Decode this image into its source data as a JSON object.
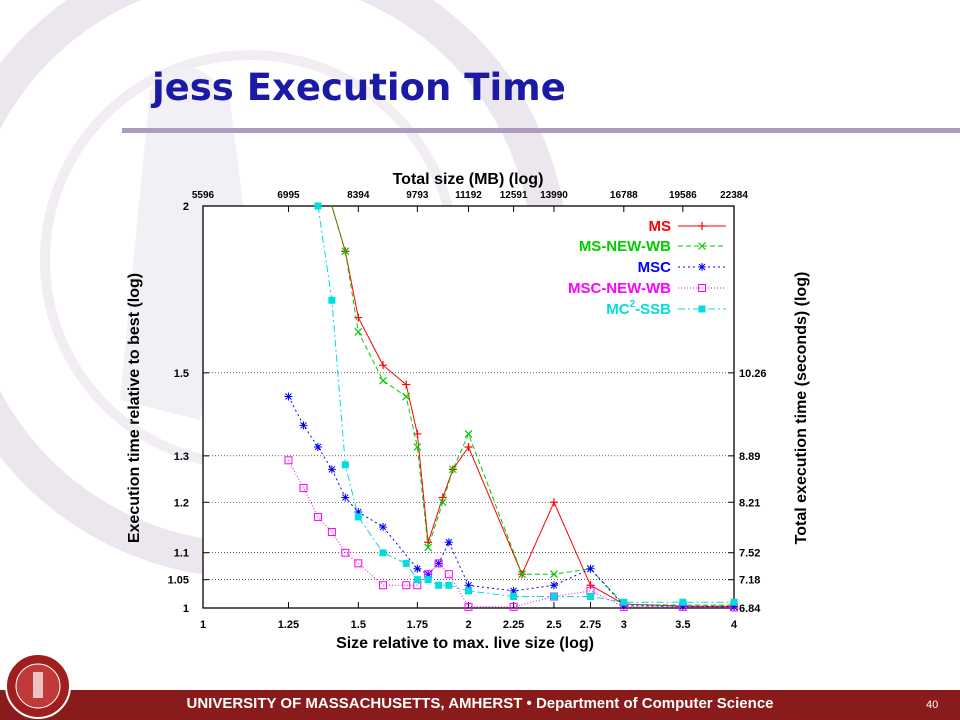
{
  "slide": {
    "title": "jess Execution Time",
    "page_number": "40",
    "footer_prefix": "UNIVERSITY OF MASSACHUSETTS, AMHERST",
    "footer_sep": " • ",
    "footer_dept": "Department of Computer Science",
    "colors": {
      "title": "#1a1aa6",
      "footer": "#8a1b1b",
      "rule": "#ad9cc0"
    }
  },
  "chart_data": {
    "type": "line",
    "title": "Total size (MB) (log)",
    "xlabel": "Size relative to max. live size (log)",
    "ylabel": "Execution time relative to best (log)",
    "y2label": "Total execution time (seconds) (log)",
    "log_x": true,
    "log_y": true,
    "xlim": [
      1,
      4
    ],
    "ylim": [
      1,
      2
    ],
    "grid": true,
    "legend_position": "top-right",
    "x_ticks": [
      "1",
      "1.25",
      "1.5",
      "1.75",
      "2",
      "2.25",
      "2.5",
      "2.75",
      "3",
      "3.5",
      "4"
    ],
    "y_ticks": [
      "1",
      "1.05",
      "1.1",
      "1.2",
      "1.3",
      "1.5",
      "2"
    ],
    "top_ticks": [
      {
        "x": 0.999,
        "label": "5596"
      },
      {
        "x": 1.25,
        "label": "6995"
      },
      {
        "x": 1.5,
        "label": "8394"
      },
      {
        "x": 1.75,
        "label": "9793"
      },
      {
        "x": 2.0,
        "label": "11192"
      },
      {
        "x": 2.25,
        "label": "12591"
      },
      {
        "x": 2.5,
        "label": "13990"
      },
      {
        "x": 3.0,
        "label": "16788"
      },
      {
        "x": 3.5,
        "label": "19586"
      },
      {
        "x": 4.0,
        "label": "22384"
      }
    ],
    "right_ticks": [
      {
        "y": 1.0,
        "label": "6.84"
      },
      {
        "y": 1.05,
        "label": "7.18"
      },
      {
        "y": 1.1,
        "label": "7.52"
      },
      {
        "y": 1.2,
        "label": "8.21"
      },
      {
        "y": 1.3,
        "label": "8.89"
      },
      {
        "y": 1.5,
        "label": "10.26"
      }
    ],
    "series": [
      {
        "name": "MS",
        "color": "#ff0000",
        "marker": "plus",
        "x": [
          1.4,
          1.45,
          1.5,
          1.6,
          1.7,
          1.75,
          1.8,
          1.87,
          1.92,
          2.0,
          2.3,
          2.5,
          2.75,
          3.0,
          3.5,
          4.0
        ],
        "y": [
          2.05,
          1.85,
          1.65,
          1.52,
          1.47,
          1.35,
          1.12,
          1.21,
          1.27,
          1.32,
          1.06,
          1.2,
          1.04,
          1.007,
          1.003,
          1.003
        ]
      },
      {
        "name": "MS-NEW-WB",
        "color": "#00cc00",
        "marker": "cross",
        "x": [
          1.4,
          1.45,
          1.5,
          1.6,
          1.7,
          1.75,
          1.8,
          1.87,
          1.92,
          2.0,
          2.3,
          2.5,
          2.75,
          3.0,
          3.5,
          4.0
        ],
        "y": [
          2.05,
          1.85,
          1.61,
          1.48,
          1.44,
          1.32,
          1.11,
          1.2,
          1.27,
          1.35,
          1.06,
          1.06,
          1.07,
          1.006,
          1.005,
          1.005
        ]
      },
      {
        "name": "MSC",
        "color": "#0000ff",
        "marker": "star",
        "x": [
          1.25,
          1.3,
          1.35,
          1.4,
          1.45,
          1.5,
          1.6,
          1.75,
          1.8,
          1.85,
          1.9,
          2.0,
          2.25,
          2.5,
          2.75,
          3.0,
          3.5,
          4.0
        ],
        "y": [
          1.44,
          1.37,
          1.32,
          1.27,
          1.21,
          1.18,
          1.15,
          1.07,
          1.06,
          1.08,
          1.12,
          1.04,
          1.03,
          1.04,
          1.07,
          1.004,
          1.003,
          1.002
        ]
      },
      {
        "name": "MSC-NEW-WB",
        "color": "#ff00ff",
        "marker": "square-open",
        "x": [
          1.25,
          1.3,
          1.35,
          1.4,
          1.45,
          1.5,
          1.6,
          1.7,
          1.75,
          1.8,
          1.85,
          1.9,
          2.0,
          2.25,
          2.5,
          2.75,
          3.0,
          3.5,
          4.0
        ],
        "y": [
          1.29,
          1.23,
          1.17,
          1.14,
          1.1,
          1.08,
          1.04,
          1.04,
          1.04,
          1.06,
          1.08,
          1.06,
          1.002,
          1.002,
          1.02,
          1.03,
          1.002,
          1.002,
          1.001
        ]
      },
      {
        "name": "MC²-SSB",
        "color": "#00dddd",
        "marker": "square-filled",
        "x": [
          1.35,
          1.4,
          1.45,
          1.5,
          1.6,
          1.7,
          1.75,
          1.8,
          1.85,
          1.9,
          2.0,
          2.25,
          2.5,
          2.75,
          3.0,
          3.5,
          4.0
        ],
        "y": [
          2.0,
          1.7,
          1.28,
          1.17,
          1.1,
          1.08,
          1.05,
          1.05,
          1.04,
          1.04,
          1.03,
          1.02,
          1.02,
          1.02,
          1.01,
          1.01,
          1.01
        ]
      }
    ],
    "legend_names": [
      "MS",
      "MS-NEW-WB",
      "MSC",
      "MSC-NEW-WB"
    ],
    "legend_mc_prefix": "MC",
    "legend_mc_sup": "2",
    "legend_mc_suffix": "-SSB"
  }
}
